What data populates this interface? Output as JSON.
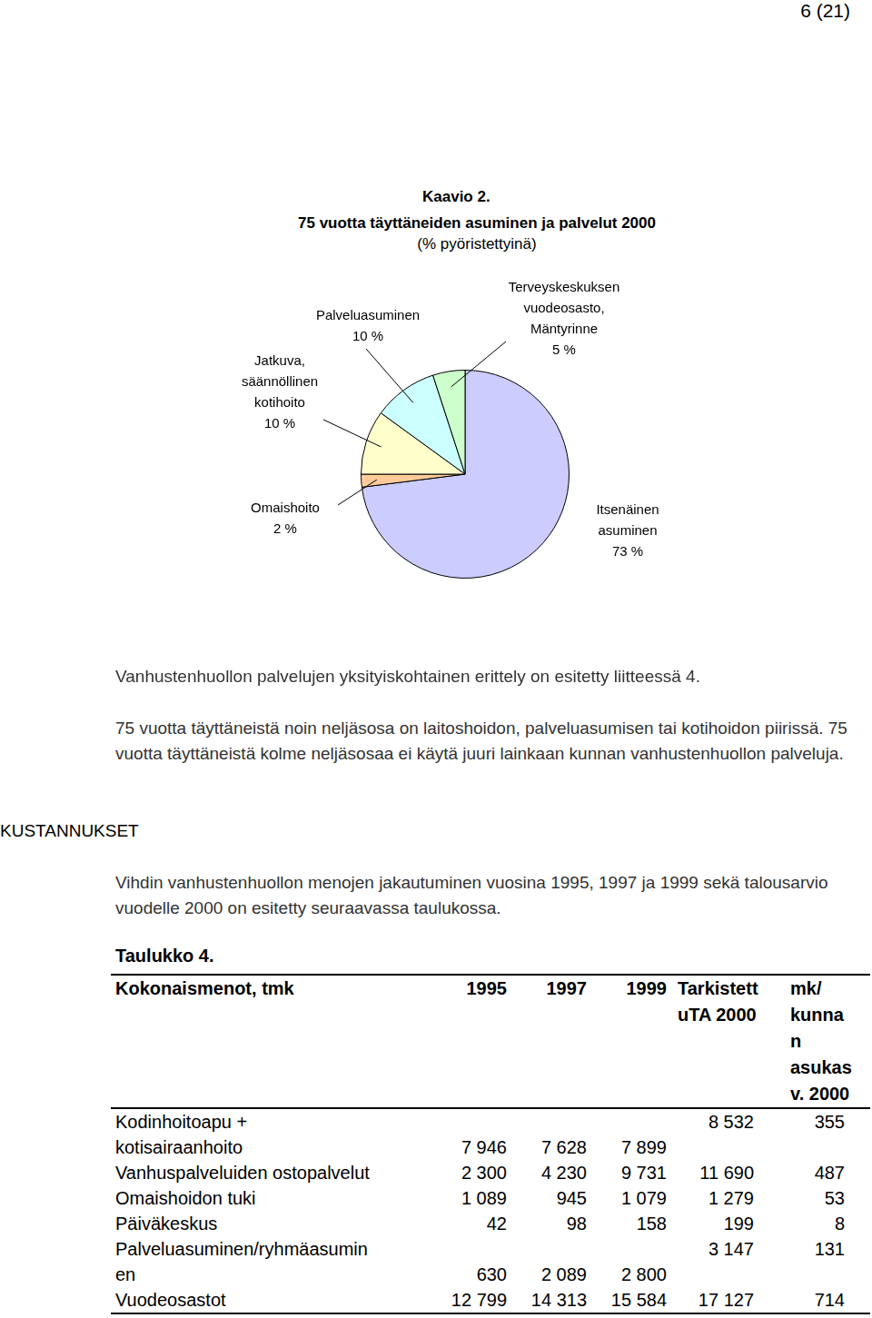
{
  "page_number": "6 (21)",
  "chart_data": {
    "type": "pie",
    "title": "Kaavio 2.",
    "subtitle": "75 vuotta täyttäneiden asuminen ja palvelut 2000",
    "annotations": [
      "(% pyöristettyinä)"
    ],
    "categories": [
      "Itsenäinen\nasuminen",
      "Omaishoito",
      "Jatkuva,\nsäännöllinen\nkotihoito",
      "Palveluasuminen",
      "Terveyskeskuksen\nvuodeosasto,\nMäntyrinne"
    ],
    "values": [
      73,
      2,
      10,
      10,
      5
    ],
    "value_labels": [
      "73 %",
      "2 %",
      "10 %",
      "10 %",
      "5 %"
    ],
    "colors": [
      "#ccccff",
      "#ffcc99",
      "#ffffcc",
      "#ccffff",
      "#ccffcc"
    ],
    "data_labels": true
  },
  "paragraphs": [
    "Vanhustenhuollon palvelujen yksityiskohtainen erittely on esitetty liitteessä 4.",
    "75 vuotta täyttäneistä noin neljäsosa on laitoshoidon, palveluasumisen tai kotihoidon piirissä. 75 vuotta täyttäneistä kolme neljäsosaa ei käytä juuri lainkaan kunnan vanhustenhuollon  palveluja.",
    "Vihdin vanhustenhuollon menojen jakautuminen vuosina 1995, 1997 ja 1999 sekä talousarvio vuodelle 2000 on esitetty seuraavassa taulukossa."
  ],
  "side_heading": "KUSTANNUKSET",
  "table": {
    "title": "Taulukko 4.",
    "header": [
      "Kokonaismenot,  tmk",
      "1995",
      "1997",
      "1999",
      "Tarkistett\nuTA 2000",
      "mk/\nkunna\nn\nasukas\nv. 2000"
    ],
    "rows": [
      [
        "Kodinhoitoapu +\nkotisairaanhoito",
        "7 946",
        "7 628",
        "7 899",
        "8 532",
        "355"
      ],
      [
        "Vanhuspalveluiden ostopalvelut",
        "2 300",
        "4 230",
        "9 731",
        "11 690",
        "487"
      ],
      [
        "Omaishoidon tuki",
        "1 089",
        "945",
        "1 079",
        "1 279",
        "53"
      ],
      [
        "Päiväkeskus",
        "42",
        "98",
        "158",
        "199",
        "8"
      ],
      [
        "Palveluasuminen/ryhmäasumin\nen",
        "630",
        "2 089",
        "2 800",
        "3 147",
        "131"
      ],
      [
        "Vuodeosastot",
        "12 799",
        "14 313",
        "15 584",
        "17 127",
        "714"
      ]
    ]
  }
}
